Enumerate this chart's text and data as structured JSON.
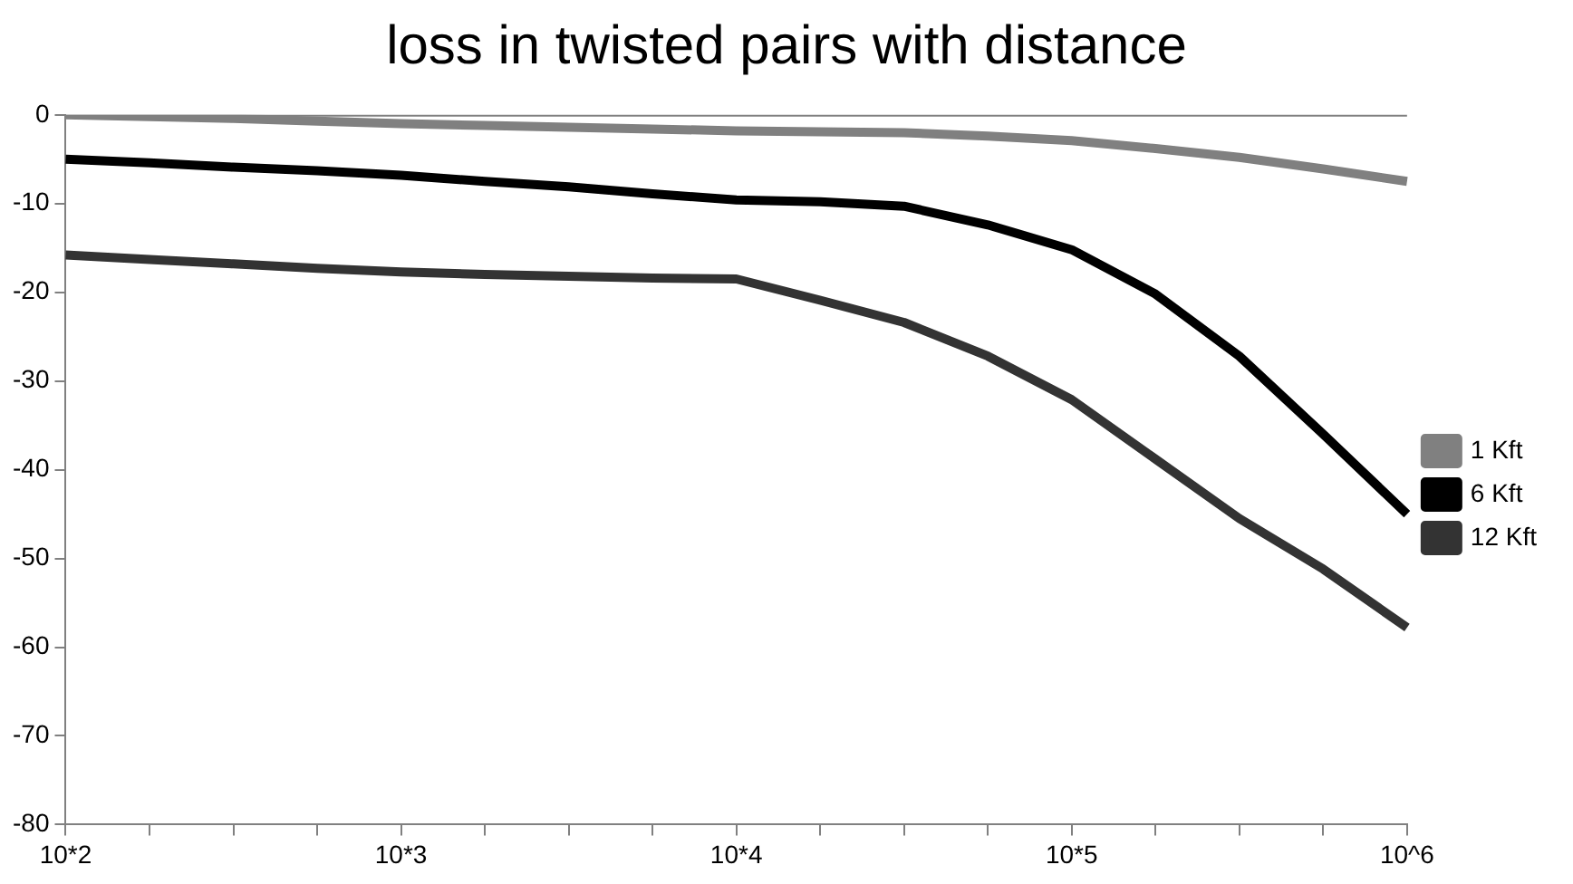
{
  "chart_data": {
    "type": "line",
    "title": "loss in twisted pairs with distance",
    "categories": [
      "10*2",
      null,
      null,
      null,
      "10*3",
      null,
      null,
      null,
      "10*4",
      null,
      null,
      null,
      "10*5",
      null,
      null,
      null,
      "10^6"
    ],
    "series": [
      {
        "name": "1 Kft",
        "color": "#808080",
        "values": [
          0,
          -0.2,
          -0.4,
          -0.7,
          -1,
          -1.2,
          -1.4,
          -1.6,
          -1.8,
          -1.9,
          -2,
          -2.4,
          -2.9,
          -3.8,
          -4.8,
          -6.1,
          -7.5
        ]
      },
      {
        "name": "6 Kft",
        "color": "#000000",
        "values": [
          -5,
          -5.4,
          -5.9,
          -6.3,
          -6.8,
          -7.5,
          -8.1,
          -8.9,
          -9.6,
          -9.8,
          -10.3,
          -12.4,
          -15.2,
          -20.2,
          -27.2,
          -36,
          -45
        ]
      },
      {
        "name": "12 Kft",
        "color": "#333333",
        "values": [
          -15.8,
          -16.3,
          -16.8,
          -17.3,
          -17.7,
          -18,
          -18.2,
          -18.4,
          -18.5,
          -20.9,
          -23.4,
          -27.2,
          -32.1,
          -38.8,
          -45.5,
          -51.2,
          -57.8
        ]
      }
    ],
    "ylim": [
      -80,
      0
    ],
    "yticks": [
      -80,
      -70,
      -60,
      -50,
      -40,
      -30,
      -20,
      -10,
      0
    ],
    "grid": false,
    "legend": "right",
    "marker": "none",
    "line_style": "solid"
  }
}
